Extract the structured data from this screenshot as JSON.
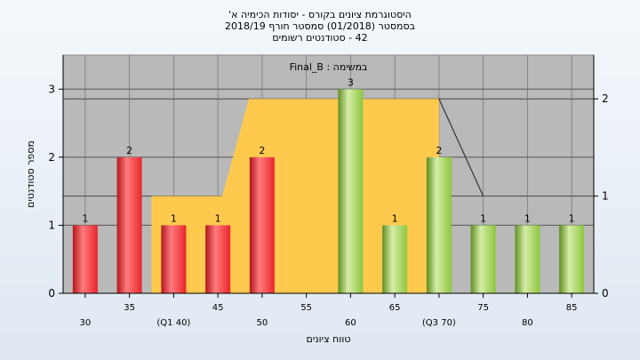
{
  "chart_data": {
    "type": "bar",
    "title_lines": [
      "היסטוגרמת ציונים בקורס - יסודות הכימיה א'",
      "בסמסטר  (01/2018)  סמסטר חורף  2018/19",
      "42 - סטודנטים רשומים"
    ],
    "inner_label": "במשימה : Final_B",
    "xlabel": "טווח ציונים",
    "ylabel": "מספר סטודנטים",
    "categories": [
      "30",
      "35",
      "(Q1 40)",
      "45",
      "50",
      "55",
      "60",
      "65",
      "(Q3 70)",
      "75",
      "80",
      "85"
    ],
    "x": [
      30,
      35,
      40,
      45,
      50,
      55,
      60,
      65,
      70,
      75,
      80,
      85
    ],
    "values": [
      1,
      2,
      1,
      1,
      2,
      0,
      3,
      1,
      2,
      1,
      1,
      1
    ],
    "bar_labels": [
      "1",
      "2",
      "1",
      "1",
      "2",
      "",
      "3",
      "1",
      "2",
      "1",
      "1",
      "1"
    ],
    "ylim": [
      0,
      3.5
    ],
    "yticks": [
      "0",
      "1",
      "2",
      "3"
    ],
    "y2lim": [
      0,
      2.45
    ],
    "y2ticks": [
      "0",
      "1",
      "2"
    ],
    "area_values": [
      null,
      null,
      1,
      1,
      2,
      2,
      2,
      2,
      2
    ],
    "line_segment": {
      "from_x": 70,
      "from_y": 2,
      "to_x": 75,
      "to_y": 1
    },
    "grid": true,
    "colors": {
      "red_bar": "#e8262b",
      "green_bar": "#8cc63f",
      "area": "#ffc94d",
      "plot_bg": "#b9b9b9",
      "line": "#333333"
    }
  }
}
